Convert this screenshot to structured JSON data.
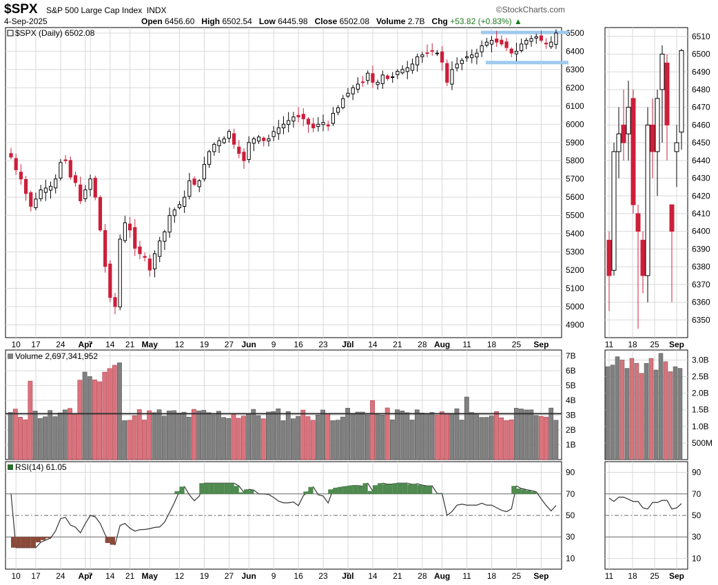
{
  "header": {
    "symbol": "$SPX",
    "name": "S&P 500 Large Cap Index",
    "exchange": "INDX",
    "date": "4-Sep-2025",
    "open_label": "Open",
    "open": "6456.60",
    "high_label": "High",
    "high": "6502.54",
    "low_label": "Low",
    "low": "6445.98",
    "close_label": "Close",
    "close": "6502.08",
    "volume_label": "Volume",
    "volume": "2.7B",
    "chg_label": "Chg",
    "chg": "+53.82 (+0.83%)",
    "source": "©StockCharts.com"
  },
  "chart_data": [
    {
      "type": "candlestick",
      "panel": "price",
      "legend": "$SPX (Daily) 6502.08",
      "y_ticks": [
        4900,
        5000,
        5100,
        5200,
        5300,
        5400,
        5500,
        5600,
        5700,
        5800,
        5900,
        6000,
        6100,
        6200,
        6300,
        6400,
        6500
      ],
      "x_ticks": [
        "10",
        "17",
        "24",
        "Apr",
        "7",
        "14",
        "21",
        "May",
        "12",
        "19",
        "27",
        "Jun",
        "9",
        "16",
        "23",
        "Jul",
        "7",
        "14",
        "21",
        "28",
        "Aug",
        "11",
        "18",
        "25",
        "Sep"
      ],
      "closes": [
        5820,
        5750,
        5700,
        5620,
        5550,
        5590,
        5640,
        5650,
        5660,
        5700,
        5790,
        5800,
        5710,
        5680,
        5580,
        5640,
        5700,
        5600,
        5420,
        5220,
        5050,
        5000,
        5370,
        5460,
        5420,
        5320,
        5290,
        5270,
        5200,
        5290,
        5360,
        5410,
        5500,
        5530,
        5560,
        5600,
        5690,
        5670,
        5690,
        5780,
        5850,
        5890,
        5910,
        5920,
        5960,
        5890,
        5840,
        5800,
        5900,
        5920,
        5930,
        5910,
        5920,
        5960,
        5980,
        6000,
        6020,
        6040,
        6040,
        6030,
        6000,
        5980,
        6000,
        6010,
        5990,
        6060,
        6090,
        6140,
        6170,
        6200,
        6220,
        6230,
        6280,
        6230,
        6230,
        6270,
        6250,
        6260,
        6290,
        6300,
        6310,
        6330,
        6370,
        6380,
        6390,
        6400,
        6390,
        6340,
        6230,
        6300,
        6330,
        6350,
        6370,
        6380,
        6390,
        6430,
        6450,
        6460,
        6450,
        6440,
        6420,
        6390,
        6400,
        6440,
        6460,
        6470,
        6480,
        6460,
        6440,
        6450,
        6500
      ]
    },
    {
      "type": "candlestick",
      "panel": "price-zoom",
      "y_ticks": [
        6350,
        6360,
        6370,
        6380,
        6390,
        6400,
        6410,
        6420,
        6430,
        6440,
        6450,
        6460,
        6470,
        6480,
        6490,
        6500,
        6510
      ],
      "x_ticks": [
        "11",
        "18",
        "25",
        "Sep"
      ]
    },
    {
      "type": "bar",
      "panel": "volume",
      "legend": "Volume 2,697,341,952",
      "y_ticks": [
        "7B",
        "6B",
        "5B",
        "4B",
        "3B",
        "2B",
        "1B"
      ],
      "y_ticks_zoom": [
        "3.0B",
        "2.5B",
        "2.0B",
        "1.5B",
        "1.0B",
        "500M"
      ],
      "average": 3.1
    },
    {
      "type": "line",
      "panel": "rsi",
      "legend": "RSI(14) 61.05",
      "y_ticks": [
        10,
        30,
        50,
        70,
        90
      ],
      "x_ticks": [
        "10",
        "17",
        "24",
        "Apr",
        "7",
        "14",
        "21",
        "May",
        "12",
        "19",
        "27",
        "Jun",
        "9",
        "16",
        "23",
        "Jul",
        "7",
        "14",
        "21",
        "28",
        "Aug",
        "11",
        "18",
        "25",
        "Sep"
      ],
      "x_ticks_zoom": [
        "11",
        "18",
        "25",
        "Sep"
      ]
    }
  ],
  "colors": {
    "up": "#000000",
    "down": "#cc1f3a",
    "vol_up": "#808080",
    "vol_down": "#d9737c",
    "band": "#9fc9ee",
    "grid": "#d8d8d8"
  }
}
